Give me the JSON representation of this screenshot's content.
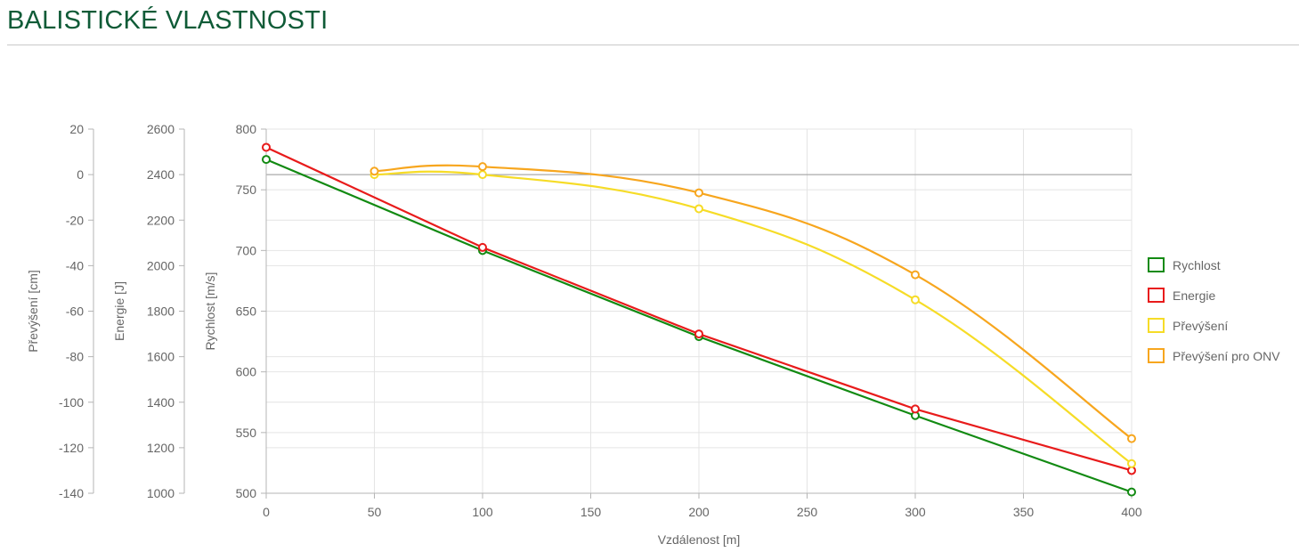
{
  "page": {
    "title": "BALISTICKÉ VLASTNOSTI"
  },
  "colors": {
    "title": "#0f5b37",
    "grid": "#e4e4e4",
    "axis": "#b5b5b5",
    "text": "#666666"
  },
  "chart_data": {
    "type": "line",
    "x_axis": {
      "label": "Vzdálenost [m]",
      "range": [
        0,
        400
      ],
      "ticks": [
        0,
        50,
        100,
        150,
        200,
        250,
        300,
        350,
        400
      ]
    },
    "y_axes": [
      {
        "id": "prevyseni",
        "label": "Převýšení [cm]",
        "range": [
          -140,
          20
        ],
        "ticks": [
          20,
          0,
          -20,
          -40,
          -60,
          -80,
          -100,
          -120,
          -140
        ]
      },
      {
        "id": "energie",
        "label": "Energie [J]",
        "range": [
          1000,
          2600
        ],
        "ticks": [
          2600,
          2400,
          2200,
          2000,
          1800,
          1600,
          1400,
          1200,
          1000
        ]
      },
      {
        "id": "rychlost",
        "label": "Rychlost [m/s]",
        "range": [
          500,
          800
        ],
        "ticks": [
          800,
          750,
          700,
          650,
          600,
          550,
          500
        ]
      }
    ],
    "grid": true,
    "legend_position": "right",
    "series": [
      {
        "name": "Rychlost",
        "axis": "rychlost",
        "color": "#128a12",
        "smooth": false,
        "x": [
          0,
          100,
          200,
          300,
          400
        ],
        "y": [
          775,
          700,
          629,
          564,
          501
        ]
      },
      {
        "name": "Energie",
        "axis": "energie",
        "color": "#e81b1b",
        "smooth": false,
        "x": [
          0,
          100,
          200,
          300,
          400
        ],
        "y": [
          2520,
          2080,
          1700,
          1370,
          1100
        ]
      },
      {
        "name": "Převýšení",
        "axis": "prevyseni",
        "color": "#f6dc27",
        "smooth": true,
        "x": [
          50,
          100,
          200,
          300,
          400
        ],
        "y": [
          0,
          0,
          -15,
          -55,
          -127
        ]
      },
      {
        "name": "Převýšení pro ONV",
        "axis": "prevyseni",
        "color": "#f7a61e",
        "smooth": true,
        "x": [
          50,
          100,
          200,
          300,
          400
        ],
        "y": [
          1.5,
          3.5,
          -8,
          -44,
          -116
        ]
      }
    ]
  }
}
